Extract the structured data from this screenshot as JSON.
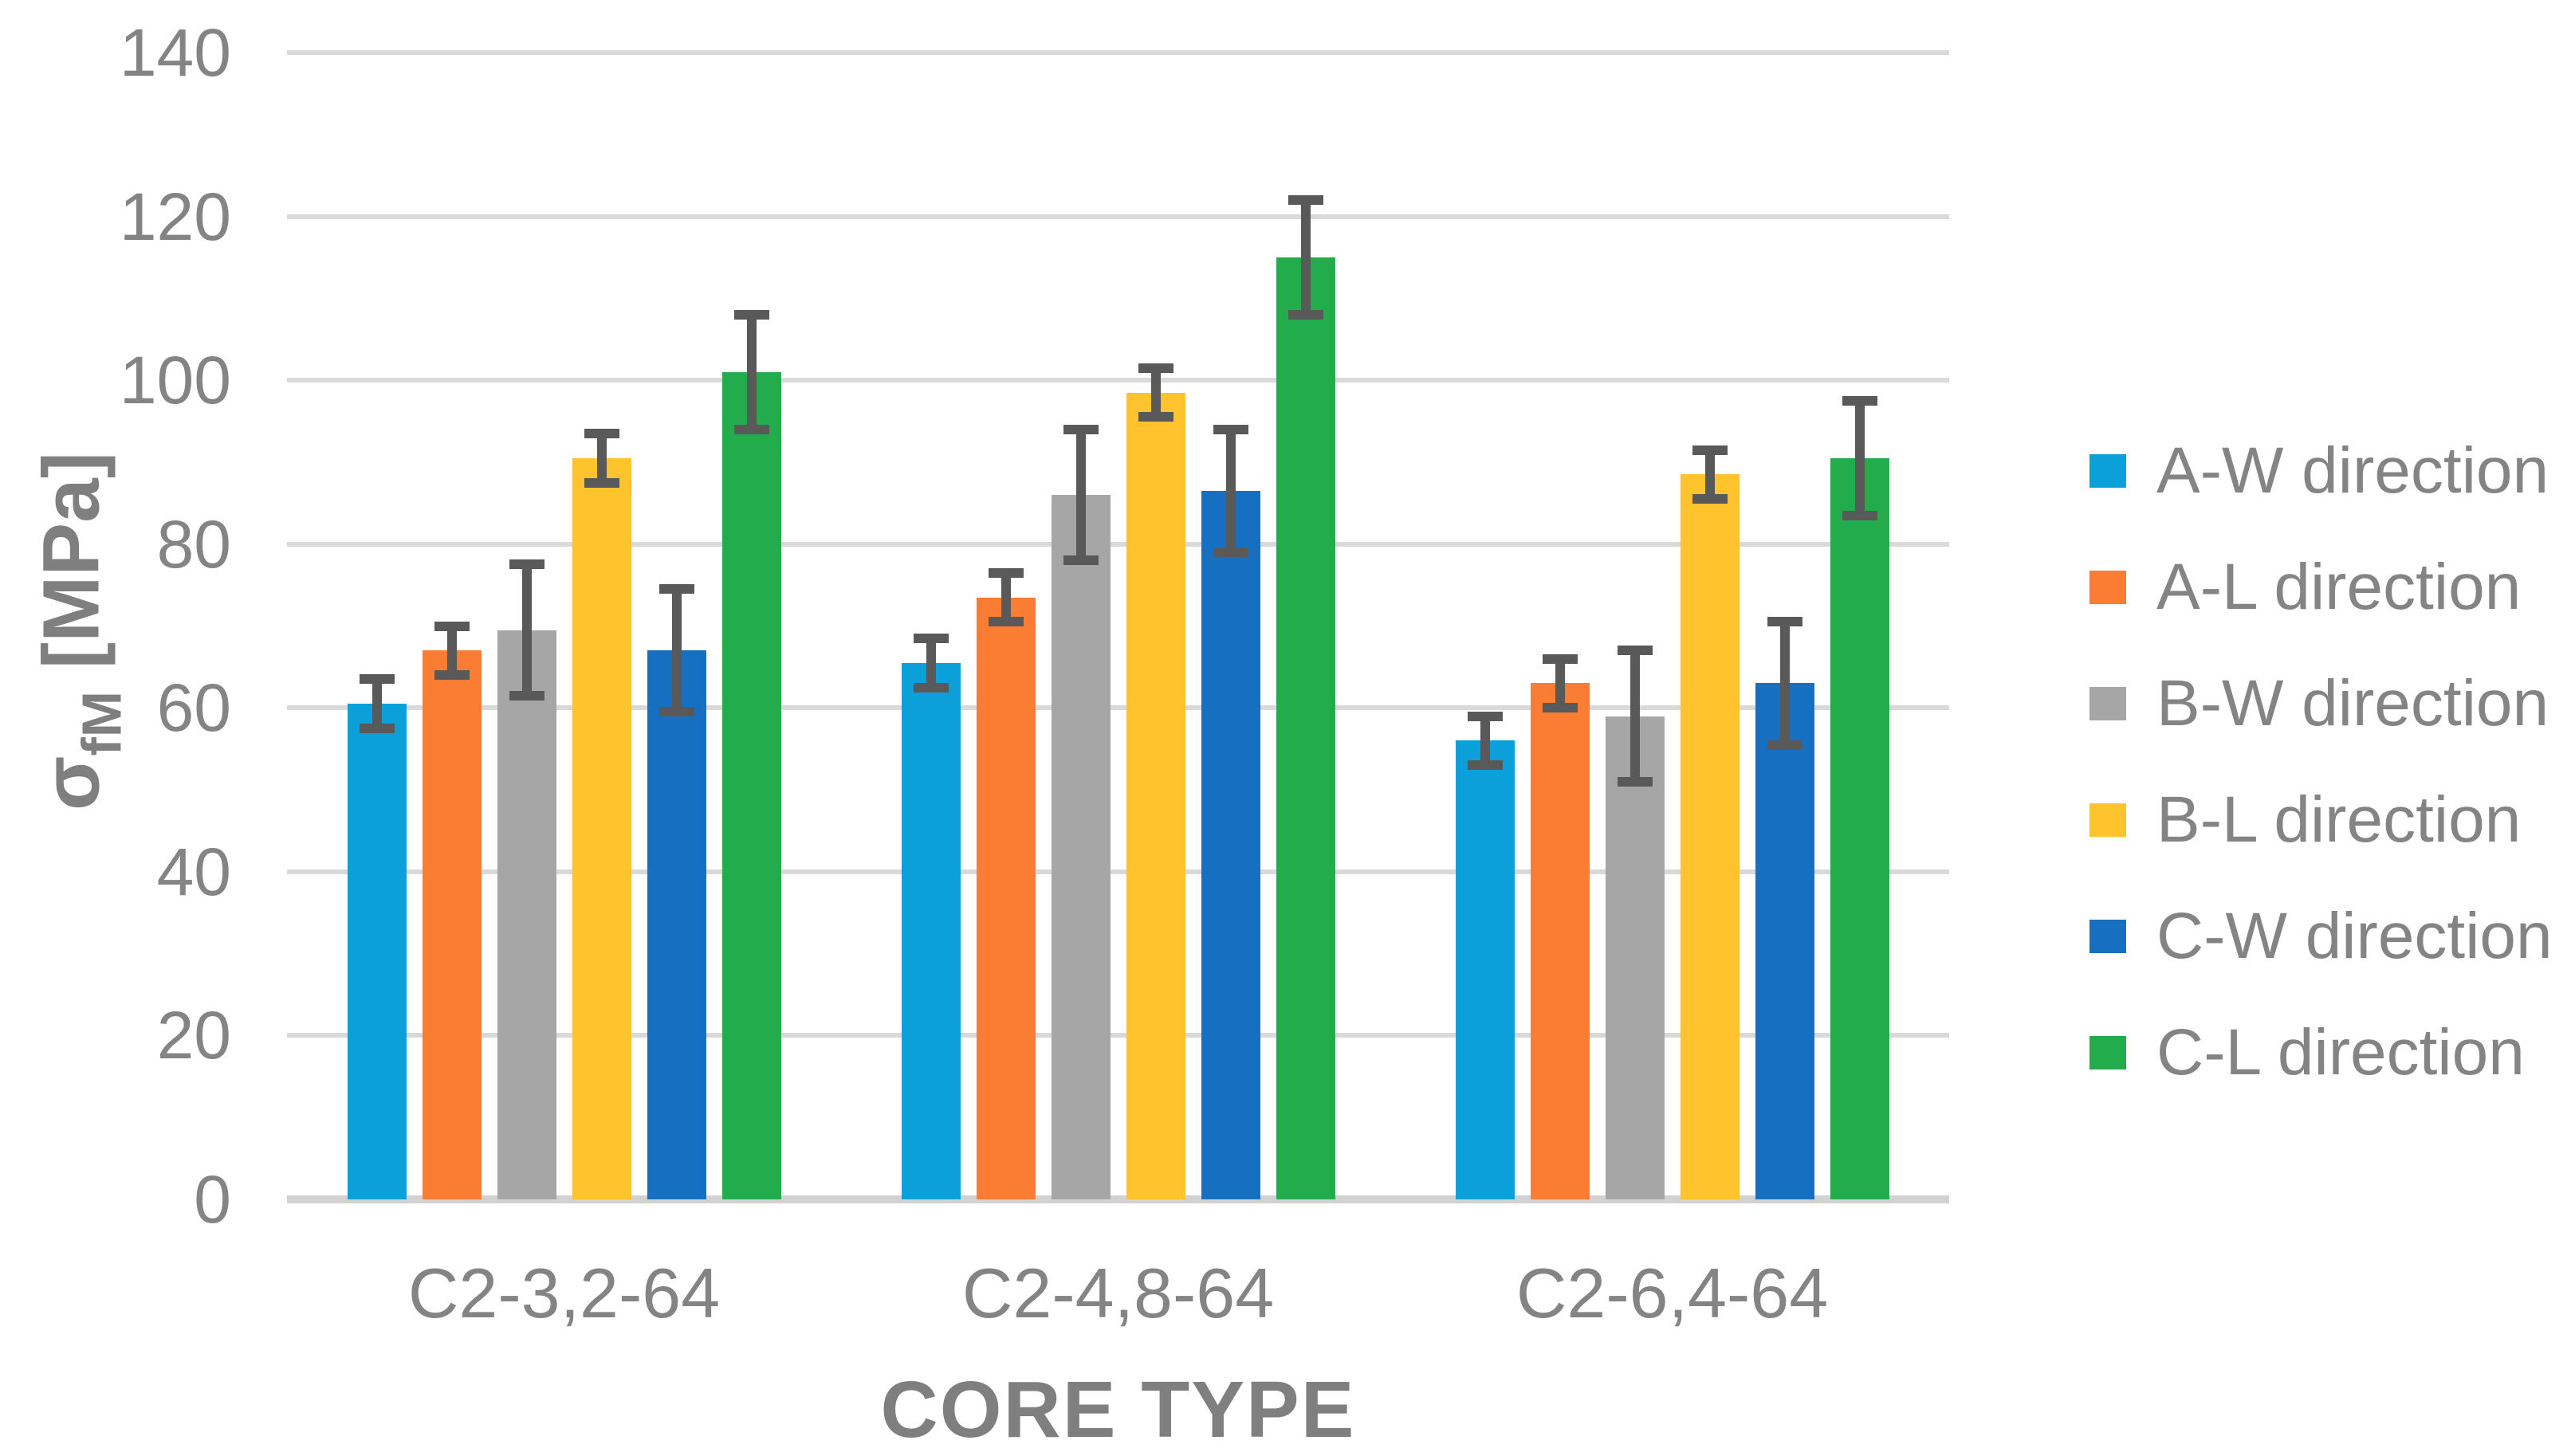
{
  "chart_data": {
    "type": "bar",
    "title": "",
    "xlabel": "CORE TYPE",
    "ylabel": "σfM [MPa]",
    "ylabel_parts": {
      "sigma": "σ",
      "sub": "fM",
      "unit": " [MPa]"
    },
    "categories": [
      "C2-3,2-64",
      "C2-4,8-64",
      "C2-6,4-64"
    ],
    "series": [
      {
        "name": "A-W direction",
        "color": "#0ca0da",
        "values": [
          60.5,
          65.5,
          56.0
        ],
        "errors": [
          3,
          3,
          3
        ]
      },
      {
        "name": "A-L direction",
        "color": "#fb7d33",
        "values": [
          67.0,
          73.5,
          63.0
        ],
        "errors": [
          3,
          3,
          3
        ]
      },
      {
        "name": "B-W direction",
        "color": "#a6a6a6",
        "values": [
          69.5,
          86.0,
          59.0
        ],
        "errors": [
          8,
          8,
          8
        ]
      },
      {
        "name": "B-L direction",
        "color": "#fec32d",
        "values": [
          90.5,
          98.5,
          88.5
        ],
        "errors": [
          3,
          3,
          3
        ]
      },
      {
        "name": "C-W direction",
        "color": "#176fc1",
        "values": [
          67.0,
          86.5,
          63.0
        ],
        "errors": [
          7.5,
          7.5,
          7.5
        ]
      },
      {
        "name": "C-L direction",
        "color": "#23ac4b",
        "values": [
          101.0,
          115.0,
          90.5
        ],
        "errors": [
          7,
          7,
          7
        ]
      }
    ],
    "ylim": [
      0,
      140
    ],
    "ytick_step": 20,
    "yticks": [
      "0",
      "20",
      "40",
      "60",
      "80",
      "100",
      "120",
      "140"
    ],
    "grid": "horizontal",
    "legend_position": "right",
    "style": {
      "gridline_color": "#d9d9d9",
      "axis_line_color": "#d2d2d2",
      "error_bar_color": "#595959",
      "text_color": "#848484",
      "title_color": "#7f7f7f",
      "background": "#ffffff"
    }
  }
}
